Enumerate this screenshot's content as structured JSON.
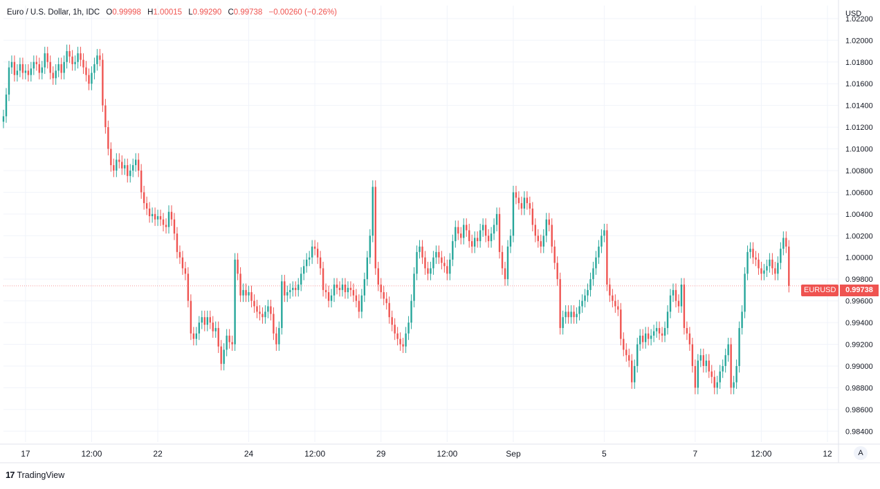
{
  "legend": {
    "symbol": "Euro / U.S. Dollar, 1h, IDC",
    "open_label": "O",
    "open": "0.99998",
    "high_label": "H",
    "high": "1.00015",
    "low_label": "L",
    "low": "0.99290",
    "close_label": "C",
    "close": "0.99738",
    "change": "−0.00260 (−0.26%)"
  },
  "price_badge": {
    "ticker": "EURUSD",
    "price": "0.99738"
  },
  "branding": {
    "logo": "17",
    "name": "TradingView"
  },
  "autoscale_label": "A",
  "colors": {
    "up": "#26a69a",
    "down": "#ef5350",
    "grid": "#f0f3fa",
    "axis_text": "#131722"
  },
  "chart_data": {
    "type": "candlestick",
    "currency": "USD",
    "y_ticks": [
      "1.02200",
      "1.02000",
      "1.01800",
      "1.01600",
      "1.01400",
      "1.01200",
      "1.01000",
      "1.00800",
      "1.00600",
      "1.00400",
      "1.00200",
      "1.00000",
      "0.99800",
      "0.99600",
      "0.99400",
      "0.99200",
      "0.99000",
      "0.98800",
      "0.98600",
      "0.98400"
    ],
    "ylim": [
      0.983,
      1.0232
    ],
    "x_ticks": [
      {
        "label": "17",
        "index": 8
      },
      {
        "label": "12:00",
        "index": 32
      },
      {
        "label": "22",
        "index": 56
      },
      {
        "label": "24",
        "index": 89
      },
      {
        "label": "12:00",
        "index": 113
      },
      {
        "label": "29",
        "index": 137
      },
      {
        "label": "12:00",
        "index": 161
      },
      {
        "label": "Sep",
        "index": 185
      },
      {
        "label": "5",
        "index": 218
      },
      {
        "label": "7",
        "index": 251
      },
      {
        "label": "12:00",
        "index": 275
      },
      {
        "label": "12",
        "index": 299
      }
    ],
    "xlim": [
      0,
      303
    ],
    "grid": true,
    "last_price": 0.99738,
    "closes": [
      1.013,
      1.015,
      1.0175,
      1.018,
      1.0168,
      1.0172,
      1.0178,
      1.017,
      1.0172,
      1.0168,
      1.0174,
      1.018,
      1.0178,
      1.017,
      1.0175,
      1.0188,
      1.018,
      1.017,
      1.0165,
      1.0172,
      1.0178,
      1.017,
      1.018,
      1.019,
      1.0185,
      1.0178,
      1.018,
      1.0188,
      1.0182,
      1.0175,
      1.0168,
      1.016,
      1.017,
      1.0178,
      1.0186,
      1.0182,
      1.014,
      1.012,
      1.01,
      1.0085,
      1.008,
      1.009,
      1.0088,
      1.0082,
      1.0085,
      1.0075,
      1.008,
      1.0085,
      1.009,
      1.008,
      1.006,
      1.005,
      1.0045,
      1.0038,
      1.004,
      1.0035,
      1.0038,
      1.0035,
      1.003,
      1.0028,
      1.0042,
      1.0035,
      1.0022,
      1.0005,
      1.0,
      0.999,
      0.9985,
      0.996,
      0.993,
      0.9925,
      0.993,
      0.994,
      0.9945,
      0.9938,
      0.9945,
      0.994,
      0.9932,
      0.9935,
      0.9918,
      0.9902,
      0.9915,
      0.9928,
      0.9922,
      0.992,
      0.9998,
      0.9985,
      0.9965,
      0.997,
      0.9965,
      0.9968,
      0.996,
      0.9955,
      0.995,
      0.9948,
      0.9945,
      0.995,
      0.9955,
      0.9948,
      0.993,
      0.992,
      0.9935,
      0.9978,
      0.9965,
      0.9968,
      0.997,
      0.9972,
      0.997,
      0.9975,
      0.9985,
      0.9992,
      0.9998,
      1.0,
      1.001,
      1.0008,
      1.0,
      0.999,
      0.997,
      0.9968,
      0.996,
      0.9965,
      0.9975,
      0.9972,
      0.997,
      0.9975,
      0.9968,
      0.9972,
      0.997,
      0.9965,
      0.996,
      0.995,
      0.9965,
      0.998,
      1.0,
      1.002,
      1.0065,
      0.999,
      0.9975,
      0.9968,
      0.9962,
      0.9958,
      0.9945,
      0.9938,
      0.993,
      0.9925,
      0.992,
      0.9918,
      0.993,
      0.994,
      0.996,
      0.9985,
      1.0005,
      1.001,
      1.0,
      0.999,
      0.9985,
      0.999,
      1.0,
      1.0005,
      1.0,
      0.9995,
      0.9992,
      0.9985,
      0.9998,
      1.0015,
      1.0028,
      1.0022,
      1.0018,
      1.003,
      1.0025,
      1.0015,
      1.001,
      1.0018,
      1.0015,
      1.0025,
      1.003,
      1.002,
      1.0015,
      1.0022,
      1.003,
      1.004,
      1.0005,
      0.999,
      0.998,
      1.001,
      1.002,
      1.006,
      1.0055,
      1.005,
      1.0045,
      1.0055,
      1.005,
      1.0045,
      1.003,
      1.002,
      1.0015,
      1.001,
      1.002,
      1.0035,
      1.003,
      1.001,
      0.9995,
      0.998,
      0.9935,
      0.9945,
      0.995,
      0.9945,
      0.995,
      0.9945,
      0.9948,
      0.9955,
      0.996,
      0.9965,
      0.997,
      0.998,
      0.999,
      1.0,
      1.001,
      1.002,
      1.0025,
      0.9975,
      0.9965,
      0.996,
      0.9955,
      0.9952,
      0.9925,
      0.9915,
      0.991,
      0.9905,
      0.9885,
      0.99,
      0.992,
      0.9928,
      0.9922,
      0.993,
      0.9925,
      0.9928,
      0.9932,
      0.9935,
      0.993,
      0.9928,
      0.9935,
      0.995,
      0.9965,
      0.997,
      0.996,
      0.9955,
      0.9975,
      0.9935,
      0.993,
      0.992,
      0.99,
      0.988,
      0.9905,
      0.991,
      0.99,
      0.9905,
      0.9895,
      0.989,
      0.988,
      0.9885,
      0.9895,
      0.99,
      0.991,
      0.992,
      0.988,
      0.9885,
      0.99,
      0.9935,
      0.995,
      0.9985,
      1.0005,
      1.0008,
      1.0,
      0.9998,
      0.999,
      0.9985,
      0.9988,
      0.9992,
      0.9998,
      0.999,
      0.9985,
      0.9995,
      1.0008,
      1.0018,
      1.001,
      0.99738
    ]
  }
}
